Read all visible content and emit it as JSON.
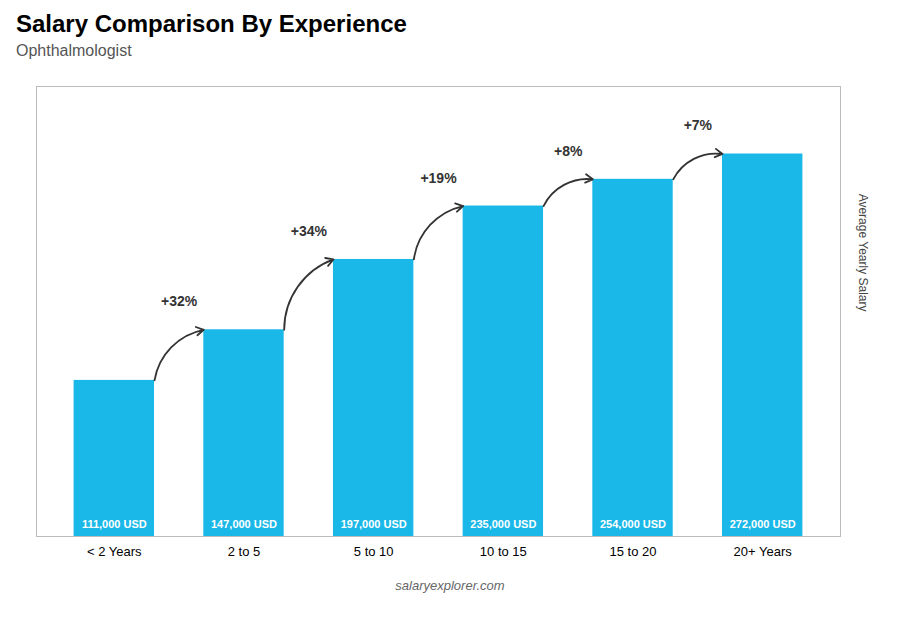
{
  "chart_data": {
    "type": "bar",
    "title": "Salary Comparison By Experience",
    "subtitle": "Ophthalmologist",
    "ylabel": "Average Yearly Salary",
    "caption": "salaryexplorer.com",
    "categories": [
      "< 2 Years",
      "2 to 5",
      "5 to 10",
      "10 to 15",
      "15 to 20",
      "20+ Years"
    ],
    "values": [
      111000,
      147000,
      197000,
      235000,
      254000,
      272000
    ],
    "value_labels": [
      "111,000 USD",
      "147,000 USD",
      "197,000 USD",
      "235,000 USD",
      "254,000 USD",
      "272,000 USD"
    ],
    "data_labels": true,
    "annotations": [
      "+32%",
      "+34%",
      "+19%",
      "+8%",
      "+7%"
    ],
    "color": "#1ab8e8",
    "ylim": [
      0,
      320000
    ],
    "tick_labels": "x"
  }
}
